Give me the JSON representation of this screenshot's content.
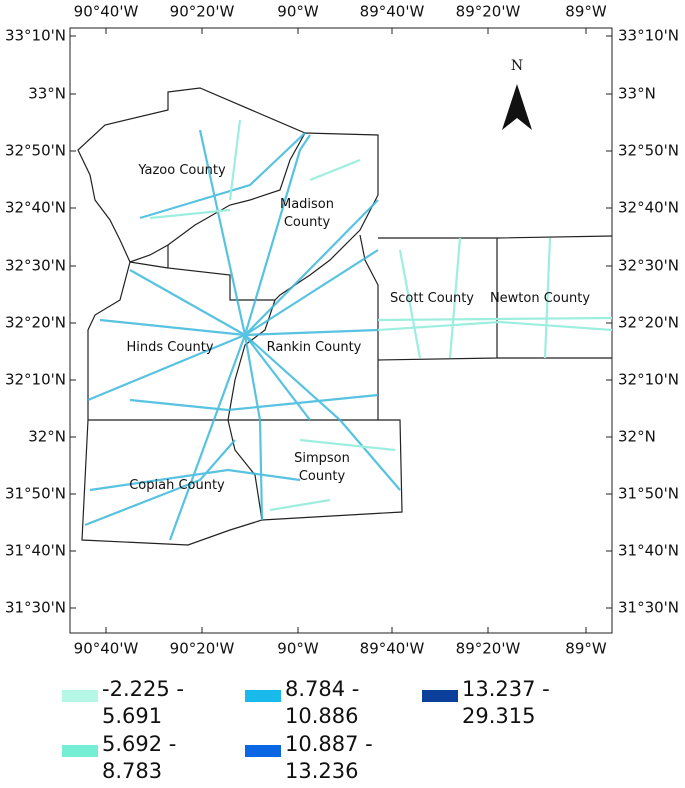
{
  "map": {
    "lon_labels": [
      "90°40'W",
      "90°20'W",
      "90°W",
      "89°40'W",
      "89°20'W",
      "89°W"
    ],
    "lat_labels": [
      "33°10'N",
      "33°N",
      "32°50'N",
      "32°40'N",
      "32°30'N",
      "32°20'N",
      "32°10'N",
      "32°N",
      "31°50'N",
      "31°40'N",
      "31°30'N"
    ],
    "counties": [
      "Yazoo County",
      "Madison County",
      "Hinds County",
      "Rankin County",
      "Copiah County",
      "Simpson County",
      "Scott County",
      "Newton County"
    ],
    "north": "N"
  },
  "legend": {
    "items": [
      {
        "label": "-2.225 - 5.691",
        "color": "#b6f6e4"
      },
      {
        "label": "5.692 - 8.783",
        "color": "#74efd5"
      },
      {
        "label": "8.784 - 10.886",
        "color": "#19b9ec"
      },
      {
        "label": "10.887 - 13.236",
        "color": "#0a66e2"
      },
      {
        "label": "13.237 - 29.315",
        "color": "#0b3f9a"
      }
    ]
  }
}
